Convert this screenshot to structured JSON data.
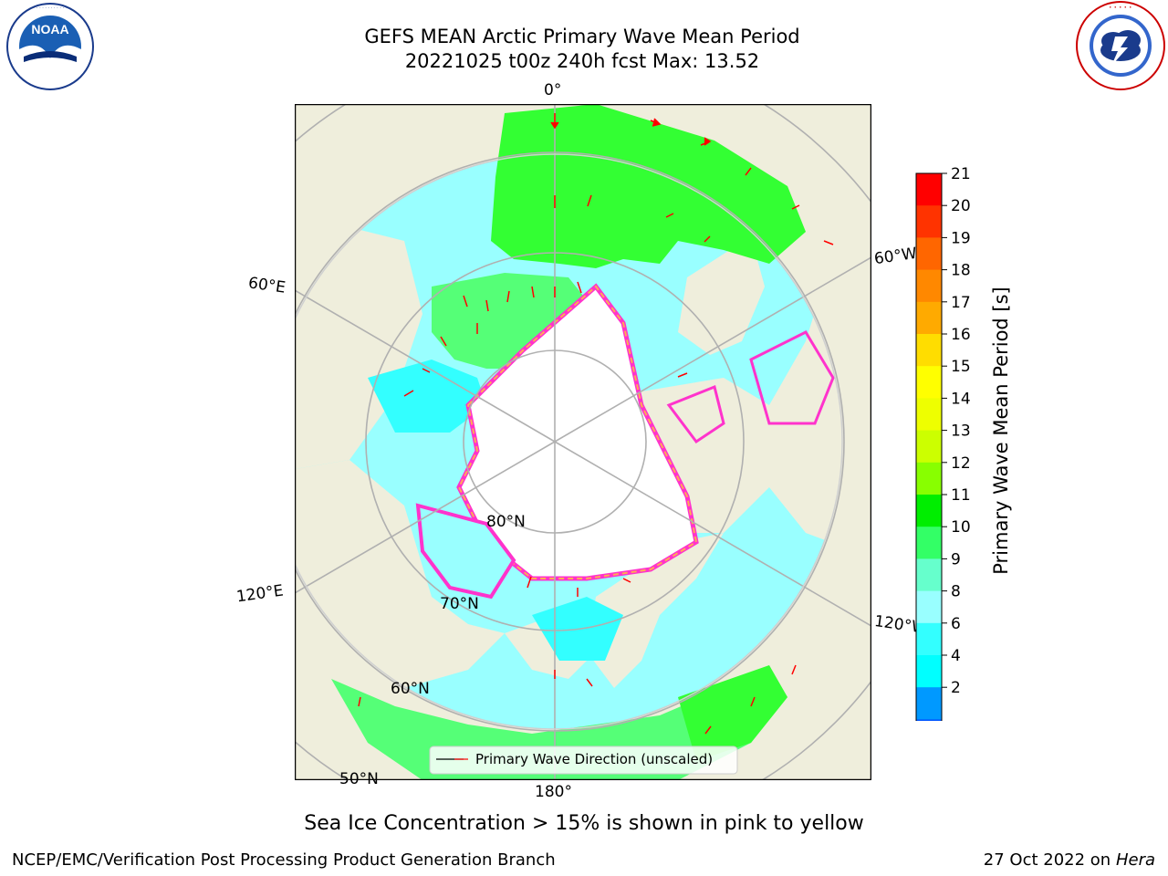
{
  "header": {
    "title_line1": "GEFS MEAN Arctic Primary Wave Mean Period",
    "title_line2": "20221025 t00z 240h fcst   Max: 13.52"
  },
  "logos": {
    "left": {
      "name": "NOAA",
      "text": "NOAA",
      "ring_text": "NATIONAL OCEANIC AND ATMOSPHERIC ADMINISTRATION · U.S. DEPARTMENT OF COMMERCE"
    },
    "right": {
      "name": "National Weather Service",
      "ring_text": "NATIONAL WEATHER SERVICE"
    }
  },
  "map": {
    "projection": "north polar stereographic",
    "colors": {
      "land": "#efeedc",
      "ocean_cold": "#99ffff",
      "ocean_mid": "#33ffff",
      "swell": "#33ff33",
      "swell_light": "#55ff77",
      "ice_edge": "#ff33cc",
      "ice_edge2": "#ffaa55",
      "graticule": "#b0b0b0",
      "arrow": "#ff0000"
    },
    "lon_labels": [
      "0°",
      "60°E",
      "60°W",
      "120°E",
      "120°W",
      "180°"
    ],
    "lat_labels": [
      "80°N",
      "70°N",
      "60°N",
      "50°N"
    ],
    "legend_label": "Primary Wave Direction (unscaled)"
  },
  "colorbar": {
    "label": "Primary Wave Mean Period [s]",
    "ticks": [
      "21",
      "20",
      "19",
      "18",
      "17",
      "16",
      "15",
      "14",
      "13",
      "12",
      "11",
      "10",
      "9",
      "8",
      "6",
      "4",
      "2"
    ],
    "colors": [
      "#ff0000",
      "#ff3300",
      "#ff6600",
      "#ff8800",
      "#ffaa00",
      "#ffdd00",
      "#ffff00",
      "#eeff00",
      "#ccff00",
      "#88ff00",
      "#00ee00",
      "#33ff66",
      "#66ffcc",
      "#99ffff",
      "#33ffff",
      "#00ffff",
      "#0099ff",
      "#0055ff"
    ],
    "under_color": "#0000ff"
  },
  "footer": {
    "caption": "Sea Ice Concentration > 15% is shown in pink to yellow",
    "credit": "NCEP/EMC/Verification Post Processing Product Generation Branch",
    "date": "27 Oct 2022 on",
    "machine": "Hera"
  }
}
